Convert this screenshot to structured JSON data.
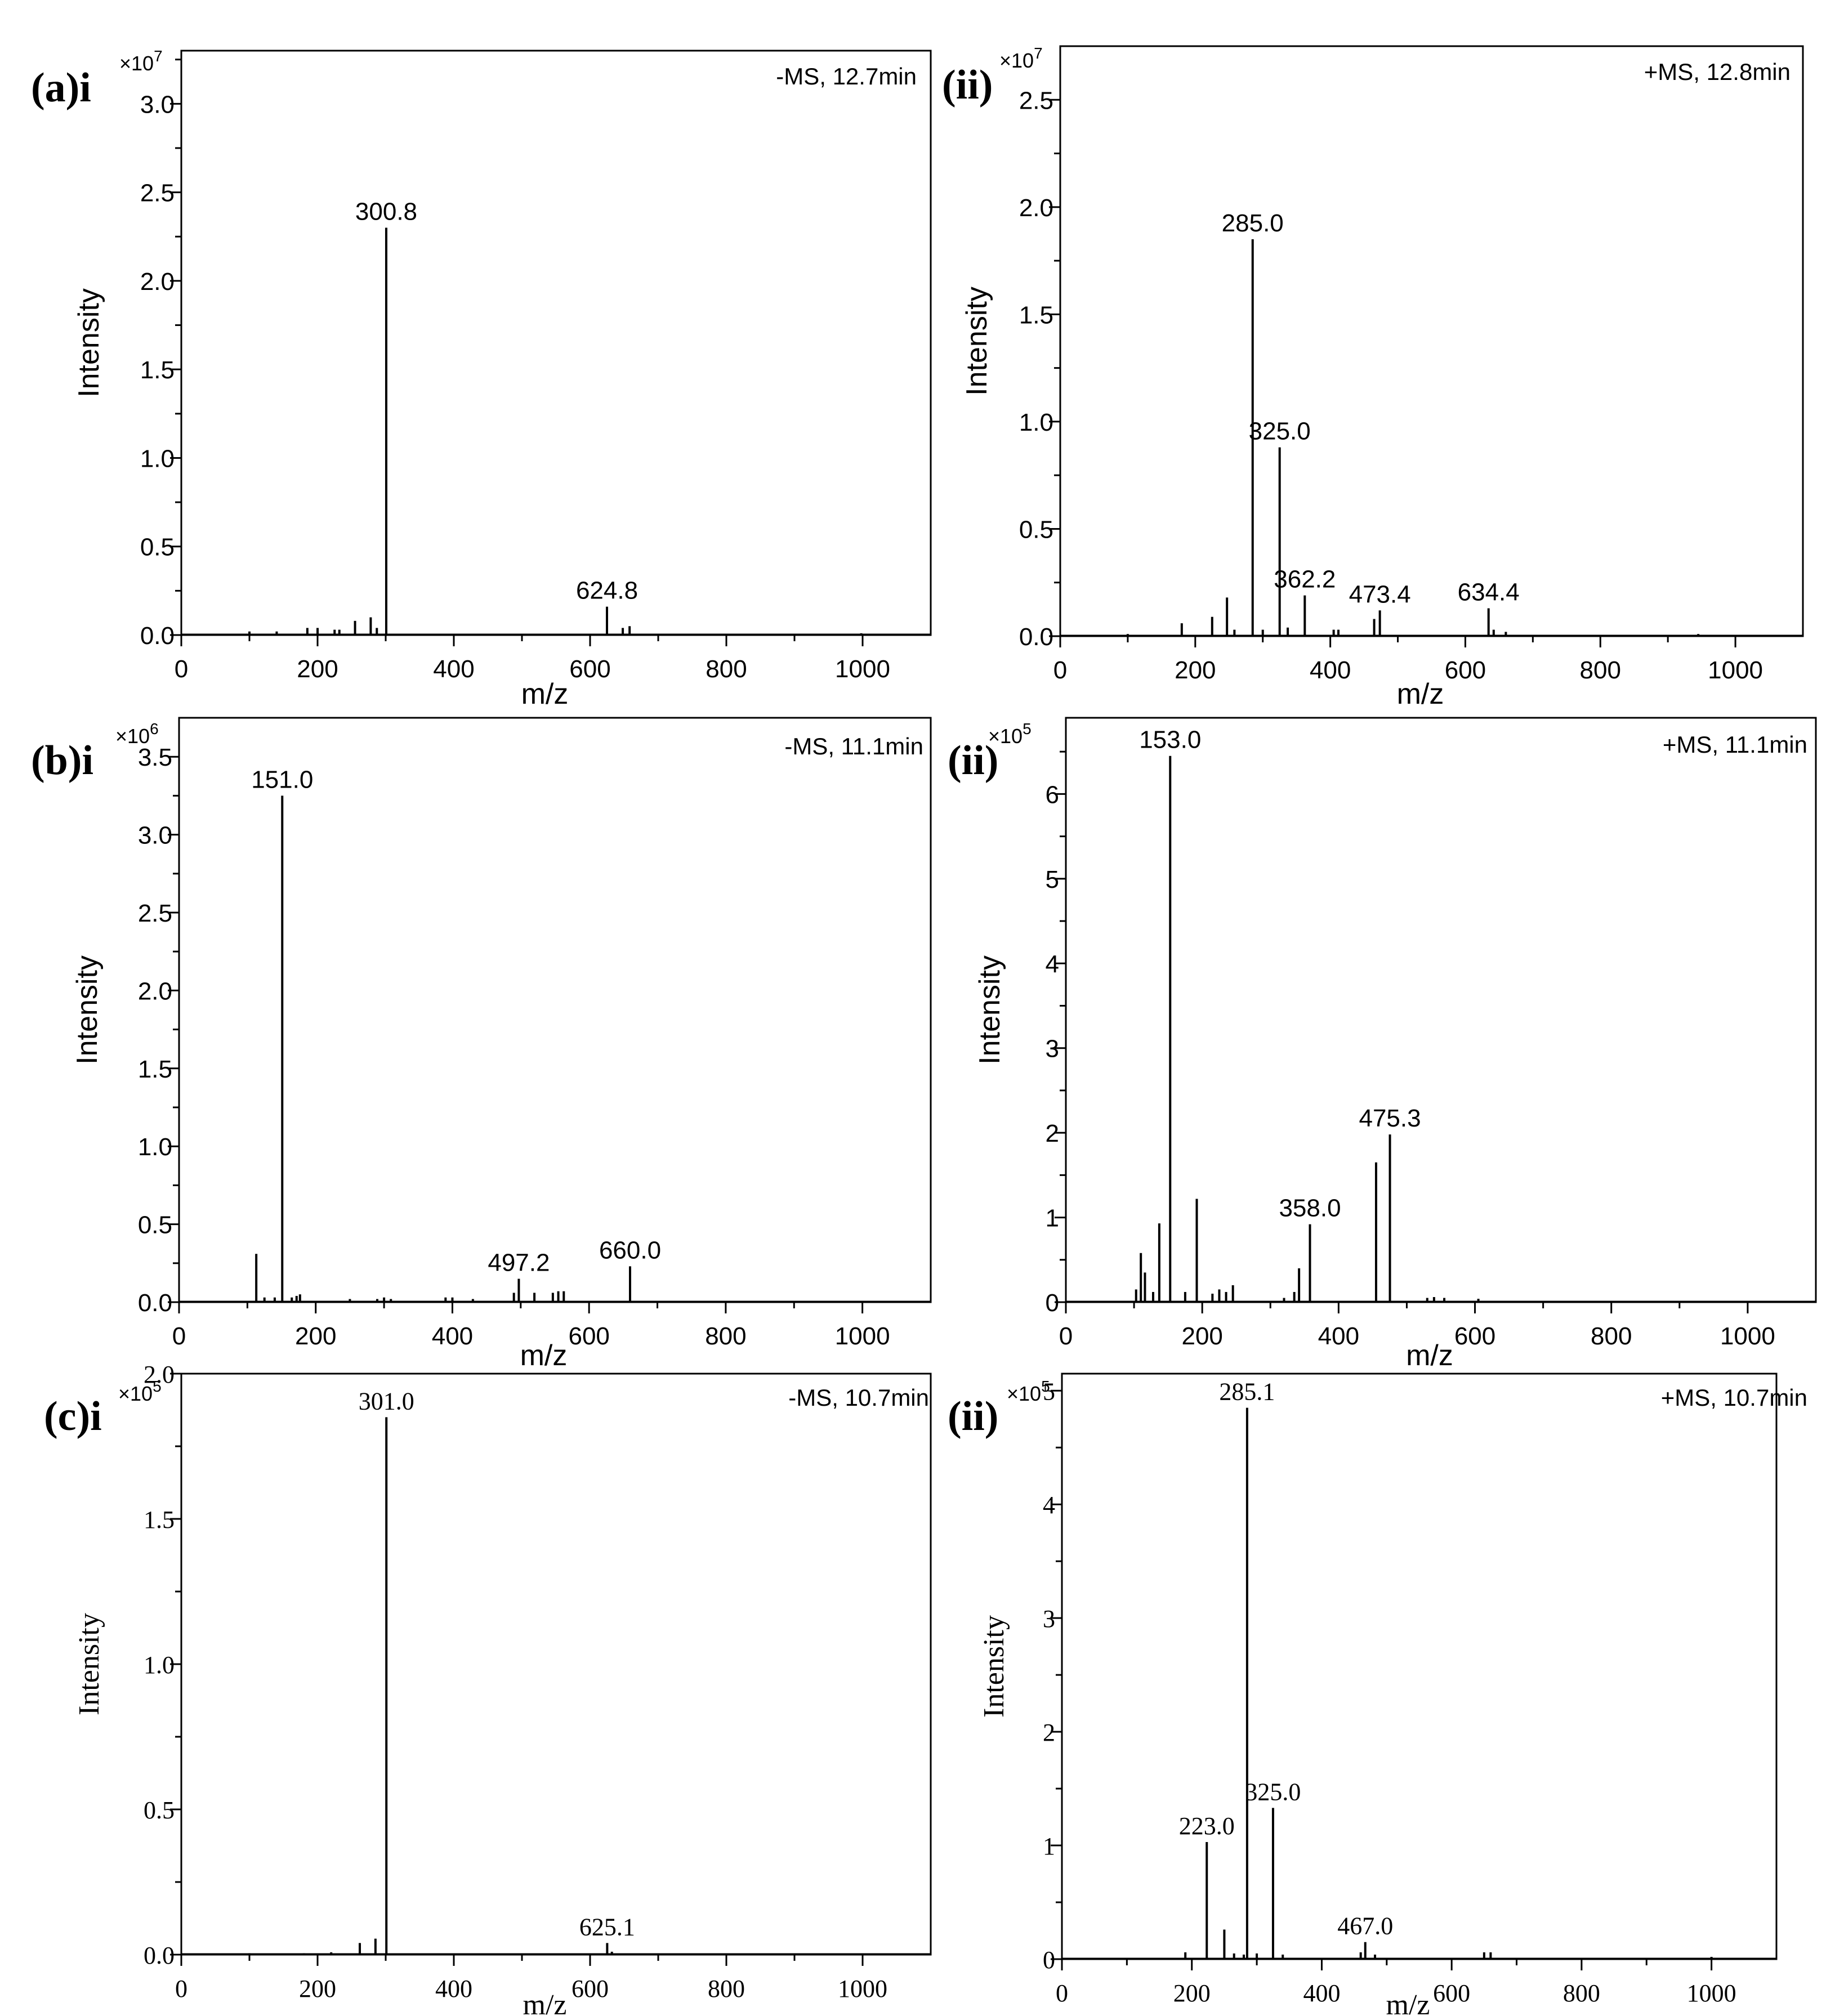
{
  "colors": {
    "line": "#000000",
    "background": "#ffffff"
  },
  "chart_data": [
    {
      "id": "a-i",
      "panel_label": "(a)i",
      "type": "spectrum",
      "annotation": "-MS, 12.7min",
      "xlabel": "m/z",
      "ylabel": "Intensity",
      "multiplier_base": "×10",
      "multiplier_exp": "7",
      "xlim": [
        0,
        1100
      ],
      "ylim": [
        0,
        3.3
      ],
      "font": "sans",
      "xticks": [
        0,
        200,
        400,
        600,
        800,
        1000
      ],
      "xtick_labels": [
        "0",
        "200",
        "400",
        "600",
        "800",
        "1000"
      ],
      "yticks": [
        0,
        0.5,
        1,
        1.5,
        2,
        2.5,
        3
      ],
      "ytick_labels": [
        "0.0",
        "0.5",
        "1.0",
        "1.5",
        "2.0",
        "2.5",
        "3.0"
      ],
      "peaks": [
        [
          100,
          0.02
        ],
        [
          140,
          0.02
        ],
        [
          185,
          0.04
        ],
        [
          200,
          0.04
        ],
        [
          225,
          0.03
        ],
        [
          232,
          0.03
        ],
        [
          255,
          0.08
        ],
        [
          278,
          0.1
        ],
        [
          287,
          0.04
        ],
        [
          300.8,
          2.3
        ],
        [
          624.8,
          0.16
        ],
        [
          648,
          0.04
        ],
        [
          658,
          0.05
        ],
        [
          998,
          0.01
        ]
      ],
      "labels": [
        {
          "text": "300.8",
          "x": 300.8,
          "y": 2.3
        },
        {
          "text": "624.8",
          "x": 624.8,
          "y": 0.16
        }
      ]
    },
    {
      "id": "a-ii",
      "panel_label": "(ii)",
      "type": "spectrum",
      "annotation": "+MS, 12.8min",
      "xlabel": "m/z",
      "ylabel": "Intensity",
      "multiplier_base": "×10",
      "multiplier_exp": "7",
      "xlim": [
        0,
        1100
      ],
      "ylim": [
        0,
        2.75
      ],
      "font": "sans",
      "xticks": [
        0,
        200,
        400,
        600,
        800,
        1000
      ],
      "xtick_labels": [
        "0",
        "200",
        "400",
        "600",
        "800",
        "1000"
      ],
      "yticks": [
        0,
        0.5,
        1,
        1.5,
        2,
        2.5
      ],
      "ytick_labels": [
        "0.0",
        "0.5",
        "1.0",
        "1.5",
        "2.0",
        "2.5"
      ],
      "peaks": [
        [
          100,
          0.01
        ],
        [
          180,
          0.06
        ],
        [
          225,
          0.09
        ],
        [
          247,
          0.18
        ],
        [
          258,
          0.03
        ],
        [
          285.0,
          1.85
        ],
        [
          300,
          0.03
        ],
        [
          325.0,
          0.88
        ],
        [
          337,
          0.04
        ],
        [
          362.2,
          0.19
        ],
        [
          405,
          0.03
        ],
        [
          412,
          0.03
        ],
        [
          465,
          0.08
        ],
        [
          473.4,
          0.12
        ],
        [
          634.4,
          0.13
        ],
        [
          642,
          0.03
        ],
        [
          660,
          0.02
        ],
        [
          945,
          0.01
        ]
      ],
      "labels": [
        {
          "text": "285.0",
          "x": 285.0,
          "y": 1.85
        },
        {
          "text": "325.0",
          "x": 325.0,
          "y": 0.88
        },
        {
          "text": "362.2",
          "x": 362.2,
          "y": 0.19
        },
        {
          "text": "473.4",
          "x": 473.4,
          "y": 0.12
        },
        {
          "text": "634.4",
          "x": 634.4,
          "y": 0.13
        }
      ]
    },
    {
      "id": "b-i",
      "panel_label": "(b)i",
      "type": "spectrum",
      "annotation": "-MS, 11.1min",
      "xlabel": "m/z",
      "ylabel": "Intensity",
      "multiplier_base": "×10",
      "multiplier_exp": "6",
      "xlim": [
        0,
        1100
      ],
      "ylim": [
        0,
        3.75
      ],
      "font": "sans",
      "xticks": [
        0,
        200,
        400,
        600,
        800,
        1000
      ],
      "xtick_labels": [
        "0",
        "200",
        "400",
        "600",
        "800",
        "1000"
      ],
      "yticks": [
        0,
        0.5,
        1,
        1.5,
        2,
        2.5,
        3,
        3.5
      ],
      "ytick_labels": [
        "0.0",
        "0.5",
        "1.0",
        "1.5",
        "2.0",
        "2.5",
        "3.0",
        "3.5"
      ],
      "peaks": [
        [
          113,
          0.31
        ],
        [
          125,
          0.03
        ],
        [
          140,
          0.03
        ],
        [
          151.0,
          3.25
        ],
        [
          165,
          0.03
        ],
        [
          172,
          0.04
        ],
        [
          177,
          0.05
        ],
        [
          250,
          0.02
        ],
        [
          290,
          0.02
        ],
        [
          300,
          0.03
        ],
        [
          310,
          0.02
        ],
        [
          390,
          0.03
        ],
        [
          400,
          0.03
        ],
        [
          430,
          0.02
        ],
        [
          490,
          0.06
        ],
        [
          497.2,
          0.15
        ],
        [
          520,
          0.06
        ],
        [
          547,
          0.06
        ],
        [
          555,
          0.07
        ],
        [
          563,
          0.07
        ],
        [
          660.0,
          0.23
        ]
      ],
      "labels": [
        {
          "text": "151.0",
          "x": 151.0,
          "y": 3.25
        },
        {
          "text": "497.2",
          "x": 497.2,
          "y": 0.15
        },
        {
          "text": "660.0",
          "x": 660.0,
          "y": 0.23
        }
      ]
    },
    {
      "id": "b-ii",
      "panel_label": "(ii)",
      "type": "spectrum",
      "annotation": "+MS, 11.1min",
      "xlabel": "m/z",
      "ylabel": "Intensity",
      "multiplier_base": "×10",
      "multiplier_exp": "5",
      "xlim": [
        0,
        1100
      ],
      "ylim": [
        0,
        6.9
      ],
      "font": "sans",
      "xticks": [
        0,
        200,
        400,
        600,
        800,
        1000
      ],
      "xtick_labels": [
        "0",
        "200",
        "400",
        "600",
        "800",
        "1000"
      ],
      "yticks": [
        0,
        1,
        2,
        3,
        4,
        5,
        6
      ],
      "ytick_labels": [
        "0",
        "1",
        "2",
        "3",
        "4",
        "5",
        "6"
      ],
      "peaks": [
        [
          103,
          0.15
        ],
        [
          110,
          0.58
        ],
        [
          116,
          0.35
        ],
        [
          128,
          0.12
        ],
        [
          137,
          0.93
        ],
        [
          153.0,
          6.45
        ],
        [
          175,
          0.12
        ],
        [
          192,
          1.22
        ],
        [
          215,
          0.1
        ],
        [
          225,
          0.15
        ],
        [
          235,
          0.12
        ],
        [
          245,
          0.2
        ],
        [
          320,
          0.05
        ],
        [
          335,
          0.12
        ],
        [
          342,
          0.4
        ],
        [
          358.0,
          0.92
        ],
        [
          455,
          1.65
        ],
        [
          475.3,
          1.98
        ],
        [
          530,
          0.05
        ],
        [
          540,
          0.06
        ],
        [
          555,
          0.05
        ],
        [
          605,
          0.04
        ]
      ],
      "labels": [
        {
          "text": "153.0",
          "x": 153.0,
          "y": 6.45
        },
        {
          "text": "358.0",
          "x": 358.0,
          "y": 0.92
        },
        {
          "text": "475.3",
          "x": 475.3,
          "y": 1.98
        }
      ]
    },
    {
      "id": "c-i",
      "panel_label": "(c)i",
      "type": "spectrum",
      "annotation": "-MS, 10.7min",
      "xlabel": "m/z",
      "ylabel": "Intensity",
      "multiplier_base": "×10",
      "multiplier_exp": "5",
      "xlim": [
        0,
        1100
      ],
      "ylim": [
        0,
        2.0
      ],
      "font": "serif",
      "xticks": [
        0,
        200,
        400,
        600,
        800,
        1000
      ],
      "xtick_labels": [
        "0",
        "200",
        "400",
        "600",
        "800",
        "1000"
      ],
      "yticks": [
        0,
        0.5,
        1,
        1.5
      ],
      "ytick_labels": [
        "0.0",
        "0.5",
        "1.0",
        "1.5"
      ],
      "extra_ytick": {
        "value": 2.0,
        "label": "2.0"
      },
      "peaks": [
        [
          100,
          0.005
        ],
        [
          180,
          0.005
        ],
        [
          220,
          0.008
        ],
        [
          262,
          0.04
        ],
        [
          285,
          0.055
        ],
        [
          301.0,
          1.85
        ],
        [
          625.1,
          0.04
        ],
        [
          632,
          0.01
        ]
      ],
      "labels": [
        {
          "text": "301.0",
          "x": 301.0,
          "y": 1.85
        },
        {
          "text": "625.1",
          "x": 625.1,
          "y": 0.04
        }
      ]
    },
    {
      "id": "c-ii",
      "panel_label": "(ii)",
      "type": "spectrum",
      "annotation": "+MS, 10.7min",
      "xlabel": "m/z",
      "ylabel": "Intensity",
      "multiplier_base": "×10",
      "multiplier_exp": "5",
      "xlim": [
        0,
        1100
      ],
      "ylim": [
        0,
        5.15
      ],
      "font": "serif",
      "xticks": [
        0,
        200,
        400,
        600,
        800,
        1000
      ],
      "xtick_labels": [
        "0",
        "200",
        "400",
        "600",
        "800",
        "1000"
      ],
      "yticks": [
        0,
        1,
        2,
        3,
        4,
        5
      ],
      "ytick_labels": [
        "0",
        "1",
        "2",
        "3",
        "4",
        "5"
      ],
      "peaks": [
        [
          190,
          0.06
        ],
        [
          223.0,
          1.03
        ],
        [
          250,
          0.26
        ],
        [
          265,
          0.05
        ],
        [
          280,
          0.04
        ],
        [
          285.1,
          4.85
        ],
        [
          300,
          0.05
        ],
        [
          325.0,
          1.33
        ],
        [
          340,
          0.04
        ],
        [
          460,
          0.06
        ],
        [
          467.0,
          0.15
        ],
        [
          482,
          0.04
        ],
        [
          650,
          0.06
        ],
        [
          660,
          0.06
        ],
        [
          1000,
          0.02
        ]
      ],
      "labels": [
        {
          "text": "285.1",
          "x": 285.1,
          "y": 4.85
        },
        {
          "text": "223.0",
          "x": 223.0,
          "y": 1.03
        },
        {
          "text": "325.0",
          "x": 325.0,
          "y": 1.33
        },
        {
          "text": "467.0",
          "x": 467.0,
          "y": 0.15
        }
      ]
    }
  ]
}
